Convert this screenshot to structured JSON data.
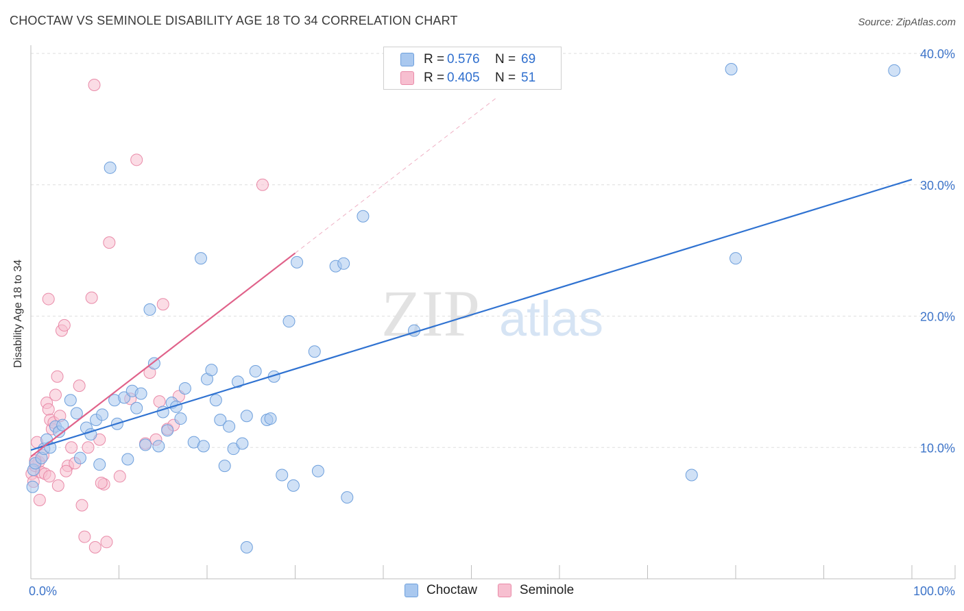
{
  "title": "CHOCTAW VS SEMINOLE DISABILITY AGE 18 TO 34 CORRELATION CHART",
  "source": "Source: ZipAtlas.com",
  "watermark": {
    "zip": "ZIP",
    "atlas": "atlas"
  },
  "legend": {
    "r_label": "R =",
    "n_label": "N =",
    "choctaw": {
      "r": "0.576",
      "n": "69"
    },
    "seminole": {
      "r": "0.405",
      "n": "51"
    }
  },
  "colors": {
    "choctaw_fill": "#a9c8ef",
    "choctaw_stroke": "#6d9fdc",
    "choctaw_line": "#2f72d1",
    "seminole_fill": "#f7bfd0",
    "seminole_stroke": "#e98aa8",
    "seminole_line": "#e0628a",
    "axis_label": "#3d74c9"
  },
  "chart_data": {
    "type": "scatter",
    "title": "CHOCTAW VS SEMINOLE DISABILITY AGE 18 TO 34 CORRELATION CHART",
    "xlabel": "",
    "ylabel": "Disability Age 18 to 34",
    "xlim": [
      0,
      100
    ],
    "ylim": [
      0,
      40
    ],
    "x_tick_labels": [
      "0.0%",
      "100.0%"
    ],
    "y_ticks": [
      10,
      20,
      30,
      40
    ],
    "y_tick_labels": [
      "10.0%",
      "20.0%",
      "30.0%",
      "40.0%"
    ],
    "grid": true,
    "legend_position": "top-center",
    "series": [
      {
        "name": "Choctaw",
        "r": 0.576,
        "n": 69,
        "trend": {
          "x": [
            0,
            100
          ],
          "y": [
            9.8,
            30.4
          ]
        },
        "points": [
          [
            0.2,
            7.0
          ],
          [
            0.3,
            8.3
          ],
          [
            0.5,
            8.8
          ],
          [
            1.2,
            9.2
          ],
          [
            1.5,
            9.9
          ],
          [
            1.8,
            10.6
          ],
          [
            2.2,
            10.0
          ],
          [
            2.8,
            11.6
          ],
          [
            3.2,
            11.2
          ],
          [
            3.6,
            11.7
          ],
          [
            4.5,
            13.6
          ],
          [
            5.2,
            12.6
          ],
          [
            5.6,
            9.2
          ],
          [
            6.3,
            11.5
          ],
          [
            6.8,
            11.0
          ],
          [
            7.4,
            12.1
          ],
          [
            7.8,
            8.7
          ],
          [
            8.1,
            12.5
          ],
          [
            9.5,
            13.6
          ],
          [
            9.8,
            11.8
          ],
          [
            10.6,
            13.8
          ],
          [
            11.0,
            9.1
          ],
          [
            11.5,
            14.3
          ],
          [
            12.0,
            13.0
          ],
          [
            12.5,
            14.1
          ],
          [
            13.0,
            10.2
          ],
          [
            13.5,
            20.5
          ],
          [
            14.0,
            16.4
          ],
          [
            14.5,
            10.1
          ],
          [
            15.0,
            12.7
          ],
          [
            15.5,
            11.3
          ],
          [
            16.0,
            13.4
          ],
          [
            16.5,
            13.1
          ],
          [
            17.0,
            12.2
          ],
          [
            17.5,
            14.5
          ],
          [
            18.5,
            10.4
          ],
          [
            19.3,
            24.4
          ],
          [
            19.6,
            10.1
          ],
          [
            20.0,
            15.2
          ],
          [
            20.5,
            15.9
          ],
          [
            21.0,
            13.6
          ],
          [
            21.5,
            12.1
          ],
          [
            22.0,
            8.6
          ],
          [
            22.5,
            11.6
          ],
          [
            23.0,
            9.9
          ],
          [
            23.5,
            15.0
          ],
          [
            24.0,
            10.3
          ],
          [
            24.5,
            12.4
          ],
          [
            25.5,
            15.8
          ],
          [
            26.8,
            12.1
          ],
          [
            27.2,
            12.2
          ],
          [
            27.6,
            15.4
          ],
          [
            28.5,
            7.9
          ],
          [
            29.3,
            19.6
          ],
          [
            29.8,
            7.1
          ],
          [
            30.2,
            24.1
          ],
          [
            32.2,
            17.3
          ],
          [
            32.6,
            8.2
          ],
          [
            34.6,
            23.8
          ],
          [
            35.5,
            24.0
          ],
          [
            35.9,
            6.2
          ],
          [
            37.7,
            27.6
          ],
          [
            43.5,
            18.9
          ],
          [
            9.0,
            31.3
          ],
          [
            24.5,
            2.4
          ],
          [
            75.0,
            7.9
          ],
          [
            79.5,
            38.8
          ],
          [
            80.0,
            24.4
          ],
          [
            98.0,
            38.7
          ]
        ]
      },
      {
        "name": "Seminole",
        "r": 0.405,
        "n": 51,
        "trend": {
          "x": [
            0,
            30
          ],
          "y": [
            9.3,
            24.8
          ]
        },
        "trend_extension": {
          "x": [
            30,
            53
          ],
          "y": [
            24.8,
            36.7
          ]
        },
        "points": [
          [
            0.1,
            8.0
          ],
          [
            0.3,
            7.4
          ],
          [
            0.5,
            8.6
          ],
          [
            0.7,
            10.4
          ],
          [
            0.9,
            8.9
          ],
          [
            1.2,
            8.1
          ],
          [
            1.4,
            9.4
          ],
          [
            1.6,
            8.0
          ],
          [
            1.8,
            13.4
          ],
          [
            2.0,
            12.9
          ],
          [
            2.2,
            12.1
          ],
          [
            2.4,
            11.4
          ],
          [
            2.6,
            11.9
          ],
          [
            2.8,
            14.0
          ],
          [
            3.0,
            15.4
          ],
          [
            3.3,
            12.4
          ],
          [
            3.5,
            18.9
          ],
          [
            3.8,
            19.3
          ],
          [
            4.2,
            8.6
          ],
          [
            4.6,
            10.0
          ],
          [
            5.5,
            14.7
          ],
          [
            5.8,
            5.6
          ],
          [
            6.1,
            3.2
          ],
          [
            6.5,
            10.0
          ],
          [
            6.9,
            21.4
          ],
          [
            7.3,
            2.4
          ],
          [
            7.8,
            10.6
          ],
          [
            8.3,
            7.2
          ],
          [
            8.6,
            2.8
          ],
          [
            8.9,
            25.6
          ],
          [
            10.1,
            7.8
          ],
          [
            11.3,
            13.7
          ],
          [
            12.0,
            31.9
          ],
          [
            13.0,
            10.3
          ],
          [
            13.5,
            15.7
          ],
          [
            14.2,
            10.6
          ],
          [
            14.6,
            13.5
          ],
          [
            15.0,
            20.9
          ],
          [
            15.5,
            11.4
          ],
          [
            16.2,
            11.7
          ],
          [
            16.8,
            13.9
          ],
          [
            26.3,
            30.0
          ],
          [
            7.2,
            37.6
          ],
          [
            2.0,
            21.3
          ],
          [
            1.0,
            6.0
          ],
          [
            0.5,
            9.0
          ],
          [
            2.1,
            7.8
          ],
          [
            3.1,
            7.1
          ],
          [
            4.0,
            8.2
          ],
          [
            5.0,
            8.8
          ],
          [
            8.0,
            7.3
          ]
        ]
      }
    ]
  }
}
